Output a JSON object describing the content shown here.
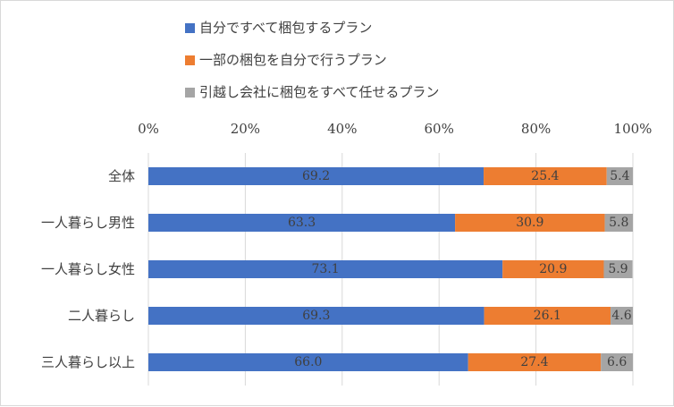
{
  "chart_data": {
    "type": "bar",
    "orientation": "horizontal",
    "stacked": "percent",
    "title": "",
    "xlabel": "",
    "ylabel": "",
    "xlim": [
      0,
      100
    ],
    "x_ticks": [
      "0%",
      "20%",
      "40%",
      "60%",
      "80%",
      "100%"
    ],
    "grid": "vertical",
    "legend_position": "top",
    "categories": [
      "全体",
      "一人暮らし男性",
      "一人暮らし女性",
      "二人暮らし",
      "三人暮らし以上"
    ],
    "series": [
      {
        "name": "自分ですべて梱包するプラン",
        "color": "#4472c4",
        "values": [
          69.2,
          63.3,
          73.1,
          69.3,
          66.0
        ],
        "labels": [
          "69.2",
          "63.3",
          "73.1",
          "69.3",
          "66.0"
        ]
      },
      {
        "name": "一部の梱包を自分で行うプラン",
        "color": "#ed7d31",
        "values": [
          25.4,
          30.9,
          20.9,
          26.1,
          27.4
        ],
        "labels": [
          "25.4",
          "30.9",
          "20.9",
          "26.1",
          "27.4"
        ]
      },
      {
        "name": "引越し会社に梱包をすべて任せるプラン",
        "color": "#a5a5a5",
        "values": [
          5.4,
          5.8,
          5.9,
          4.6,
          6.6
        ],
        "labels": [
          "5.4",
          "5.8",
          "5.9",
          "4.6",
          "6.6"
        ]
      }
    ]
  }
}
